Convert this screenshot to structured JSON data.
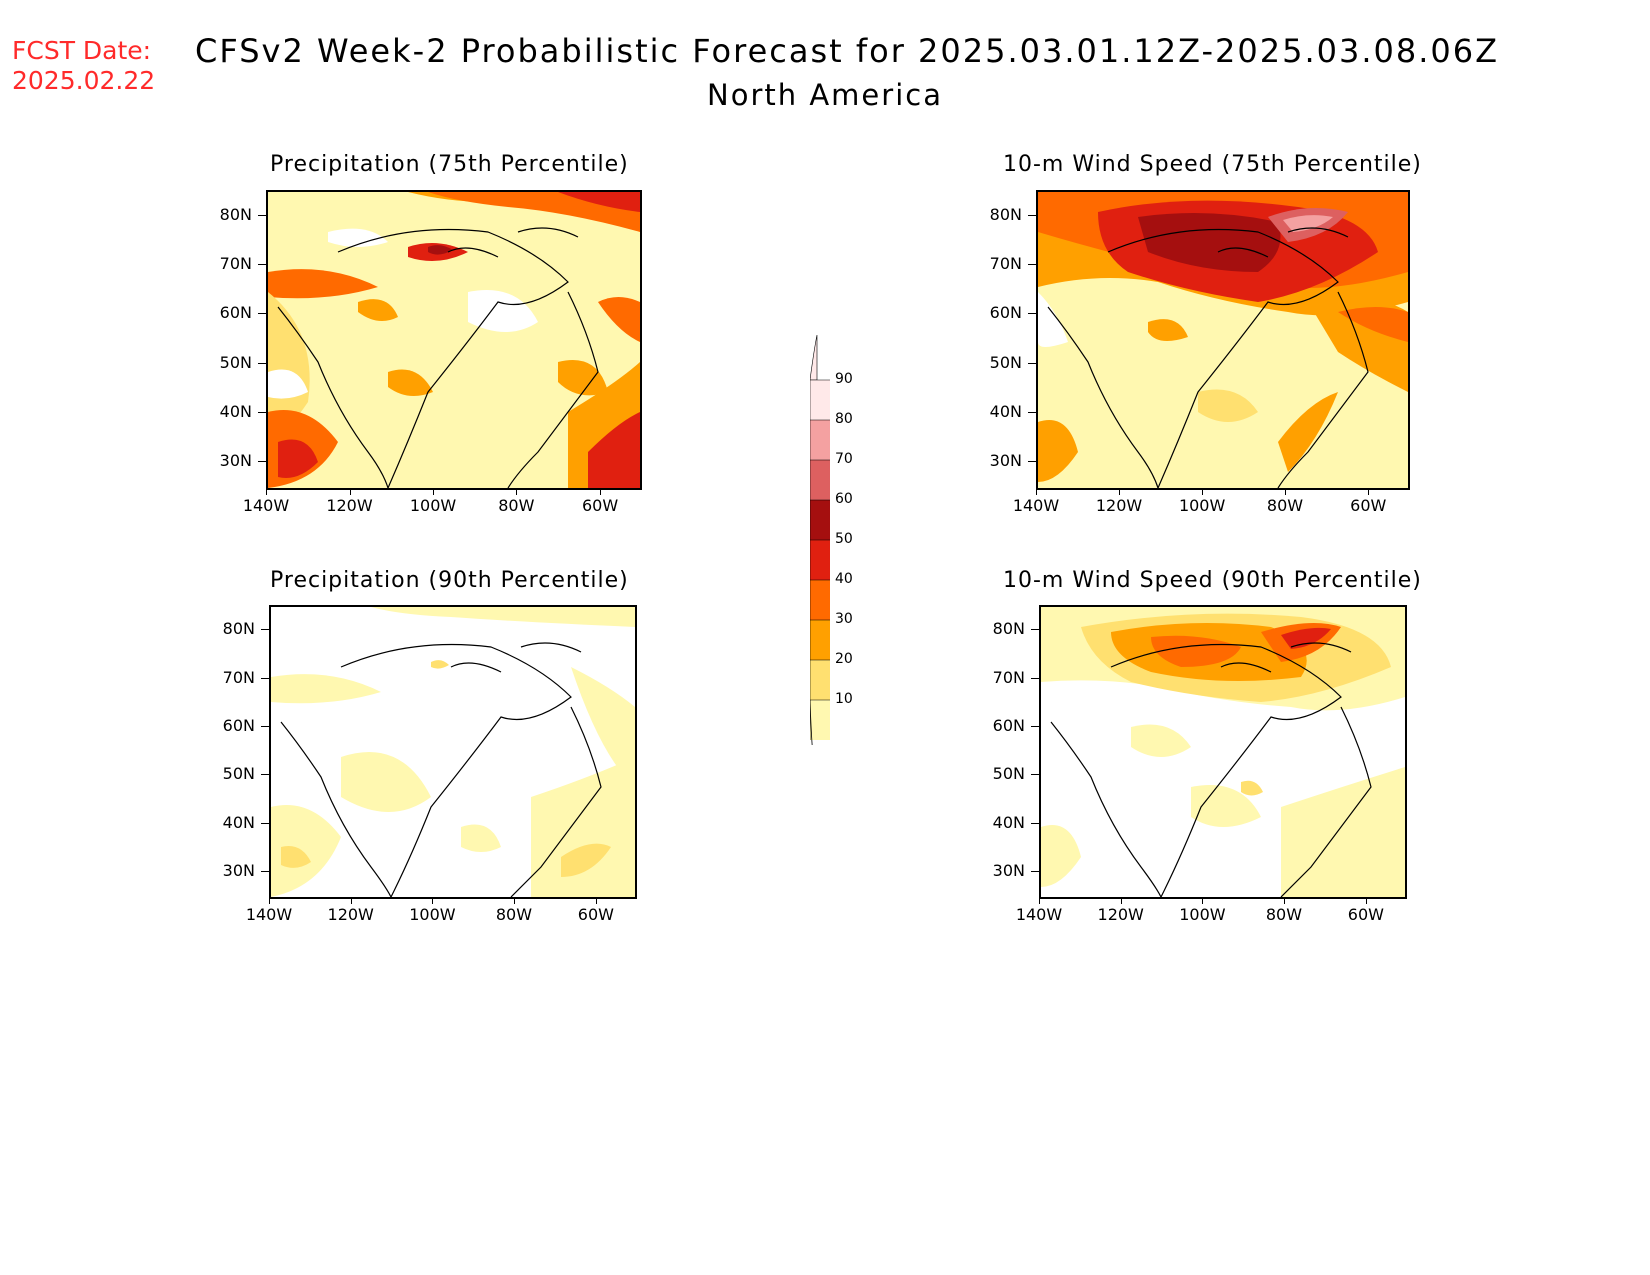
{
  "header": {
    "fcst_label": "FCST Date:",
    "fcst_date": "2025.02.22",
    "title": "CFSv2 Week-2 Probabilistic Forecast for 2025.03.01.12Z-2025.03.08.06Z",
    "subtitle": "North America"
  },
  "panels": [
    {
      "id": "precip75",
      "title": "Precipitation (75th Percentile)"
    },
    {
      "id": "wind75",
      "title": "10-m Wind Speed (75th Percentile)"
    },
    {
      "id": "precip90",
      "title": "Precipitation (90th Percentile)"
    },
    {
      "id": "wind90",
      "title": "10-m Wind Speed (90th Percentile)"
    }
  ],
  "axes": {
    "lat_labels": [
      "80N",
      "70N",
      "60N",
      "50N",
      "40N",
      "30N"
    ],
    "lon_labels": [
      "140W",
      "120W",
      "100W",
      "80W",
      "60W"
    ]
  },
  "colorbar": {
    "levels": [
      "90",
      "80",
      "70",
      "60",
      "50",
      "40",
      "30",
      "20",
      "10"
    ],
    "colors": [
      "#ffe9e9",
      "#f4a1a1",
      "#dd6060",
      "#a50f0f",
      "#e02010",
      "#ff6a00",
      "#ffa000",
      "#ffe070",
      "#fff8b0"
    ]
  }
}
